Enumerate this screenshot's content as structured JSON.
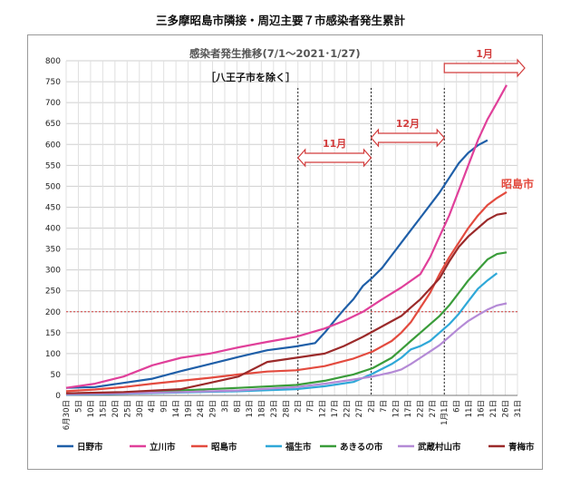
{
  "page_title": "三多摩昭島市隣接・周辺主要７市感染者発生累計",
  "chart_data": {
    "type": "line",
    "title": "感染者発生推移(7/1～2021･1/27)",
    "subtitle": "［八王子市を除く］",
    "ylim": [
      0,
      800
    ],
    "y_ticks": [
      0,
      50,
      100,
      150,
      200,
      250,
      300,
      350,
      400,
      450,
      500,
      550,
      600,
      650,
      700,
      750,
      800
    ],
    "x_tick_labels": [
      "6月30日",
      "5日",
      "10日",
      "15日",
      "20日",
      "25日",
      "30日",
      "4日",
      "9日",
      "14日",
      "19日",
      "24日",
      "29日",
      "3日",
      "8日",
      "13日",
      "18日",
      "23日",
      "28日",
      "2日",
      "7日",
      "12日",
      "17日",
      "22日",
      "27日",
      "2日",
      "7日",
      "12日",
      "17日",
      "22日",
      "27日",
      "1月1日",
      "6日",
      "11日",
      "16日",
      "21日",
      "26日",
      "31日"
    ],
    "grid": true,
    "legend_position": "bottom",
    "reference_line_y": 200,
    "periods": [
      {
        "label": "11月",
        "start_tick": 19,
        "end_tick": 25
      },
      {
        "label": "12月",
        "start_tick": 25,
        "end_tick": 31
      },
      {
        "label": "1月",
        "start_tick": 31,
        "end_tick": 37
      }
    ],
    "annotation": "昭島市",
    "series": [
      {
        "name": "日野市",
        "color": "#1f5fa8",
        "points": [
          [
            0,
            18
          ],
          [
            3,
            20
          ],
          [
            6,
            30
          ],
          [
            9,
            40
          ],
          [
            12,
            58
          ],
          [
            15,
            75
          ],
          [
            18,
            92
          ],
          [
            21,
            108
          ],
          [
            24,
            117
          ],
          [
            26,
            125
          ],
          [
            27,
            150
          ],
          [
            28,
            178
          ],
          [
            29,
            205
          ],
          [
            30,
            230
          ],
          [
            31,
            262
          ],
          [
            32,
            282
          ],
          [
            33,
            305
          ],
          [
            34,
            335
          ],
          [
            35,
            365
          ],
          [
            36,
            395
          ],
          [
            37,
            425
          ],
          [
            38,
            455
          ],
          [
            39,
            485
          ],
          [
            40,
            520
          ],
          [
            41,
            555
          ],
          [
            42,
            580
          ],
          [
            43,
            598
          ],
          [
            44,
            610
          ]
        ]
      },
      {
        "name": "立川市",
        "color": "#e0409a",
        "points": [
          [
            0,
            18
          ],
          [
            3,
            28
          ],
          [
            6,
            45
          ],
          [
            9,
            72
          ],
          [
            12,
            90
          ],
          [
            15,
            100
          ],
          [
            18,
            115
          ],
          [
            21,
            128
          ],
          [
            24,
            140
          ],
          [
            27,
            160
          ],
          [
            29,
            178
          ],
          [
            31,
            200
          ],
          [
            33,
            230
          ],
          [
            35,
            258
          ],
          [
            37,
            290
          ],
          [
            38,
            330
          ],
          [
            39,
            380
          ],
          [
            40,
            430
          ],
          [
            41,
            490
          ],
          [
            42,
            550
          ],
          [
            43,
            610
          ],
          [
            44,
            660
          ],
          [
            45,
            700
          ],
          [
            46,
            742
          ]
        ]
      },
      {
        "name": "昭島市",
        "color": "#e34b3f",
        "points": [
          [
            0,
            10
          ],
          [
            3,
            14
          ],
          [
            6,
            20
          ],
          [
            9,
            28
          ],
          [
            12,
            35
          ],
          [
            15,
            42
          ],
          [
            18,
            50
          ],
          [
            21,
            57
          ],
          [
            24,
            60
          ],
          [
            27,
            70
          ],
          [
            30,
            88
          ],
          [
            32,
            105
          ],
          [
            34,
            130
          ],
          [
            35,
            150
          ],
          [
            36,
            175
          ],
          [
            37,
            210
          ],
          [
            38,
            245
          ],
          [
            39,
            290
          ],
          [
            40,
            330
          ],
          [
            41,
            365
          ],
          [
            42,
            400
          ],
          [
            43,
            430
          ],
          [
            44,
            455
          ],
          [
            45,
            472
          ],
          [
            46,
            486
          ]
        ]
      },
      {
        "name": "福生市",
        "color": "#2fa8d8",
        "points": [
          [
            0,
            2
          ],
          [
            6,
            4
          ],
          [
            12,
            7
          ],
          [
            18,
            10
          ],
          [
            24,
            15
          ],
          [
            27,
            22
          ],
          [
            30,
            32
          ],
          [
            32,
            52
          ],
          [
            34,
            75
          ],
          [
            35,
            90
          ],
          [
            36,
            110
          ],
          [
            37,
            118
          ],
          [
            38,
            130
          ],
          [
            39,
            150
          ],
          [
            40,
            170
          ],
          [
            41,
            195
          ],
          [
            42,
            225
          ],
          [
            43,
            255
          ],
          [
            44,
            275
          ],
          [
            45,
            292
          ]
        ]
      },
      {
        "name": "あきるの市",
        "color": "#3a9c3a",
        "points": [
          [
            0,
            5
          ],
          [
            6,
            7
          ],
          [
            12,
            12
          ],
          [
            18,
            18
          ],
          [
            24,
            25
          ],
          [
            27,
            35
          ],
          [
            30,
            50
          ],
          [
            32,
            65
          ],
          [
            34,
            90
          ],
          [
            35,
            110
          ],
          [
            36,
            130
          ],
          [
            37,
            150
          ],
          [
            38,
            170
          ],
          [
            39,
            190
          ],
          [
            40,
            215
          ],
          [
            41,
            245
          ],
          [
            42,
            275
          ],
          [
            43,
            300
          ],
          [
            44,
            325
          ],
          [
            45,
            338
          ],
          [
            46,
            342
          ]
        ]
      },
      {
        "name": "武蔵村山市",
        "color": "#b48ad6",
        "points": [
          [
            0,
            3
          ],
          [
            6,
            5
          ],
          [
            12,
            8
          ],
          [
            18,
            12
          ],
          [
            24,
            20
          ],
          [
            27,
            28
          ],
          [
            30,
            38
          ],
          [
            32,
            45
          ],
          [
            34,
            55
          ],
          [
            35,
            62
          ],
          [
            36,
            75
          ],
          [
            37,
            90
          ],
          [
            38,
            105
          ],
          [
            39,
            120
          ],
          [
            40,
            140
          ],
          [
            41,
            160
          ],
          [
            42,
            178
          ],
          [
            43,
            192
          ],
          [
            44,
            205
          ],
          [
            45,
            215
          ],
          [
            46,
            220
          ]
        ]
      },
      {
        "name": "青梅市",
        "color": "#9b2a2a",
        "points": [
          [
            0,
            5
          ],
          [
            6,
            8
          ],
          [
            12,
            15
          ],
          [
            15,
            30
          ],
          [
            18,
            45
          ],
          [
            21,
            80
          ],
          [
            24,
            90
          ],
          [
            27,
            100
          ],
          [
            29,
            118
          ],
          [
            31,
            140
          ],
          [
            33,
            165
          ],
          [
            35,
            190
          ],
          [
            36,
            210
          ],
          [
            37,
            230
          ],
          [
            38,
            255
          ],
          [
            39,
            280
          ],
          [
            40,
            320
          ],
          [
            41,
            355
          ],
          [
            42,
            380
          ],
          [
            43,
            400
          ],
          [
            44,
            420
          ],
          [
            45,
            432
          ],
          [
            46,
            436
          ]
        ]
      }
    ]
  }
}
